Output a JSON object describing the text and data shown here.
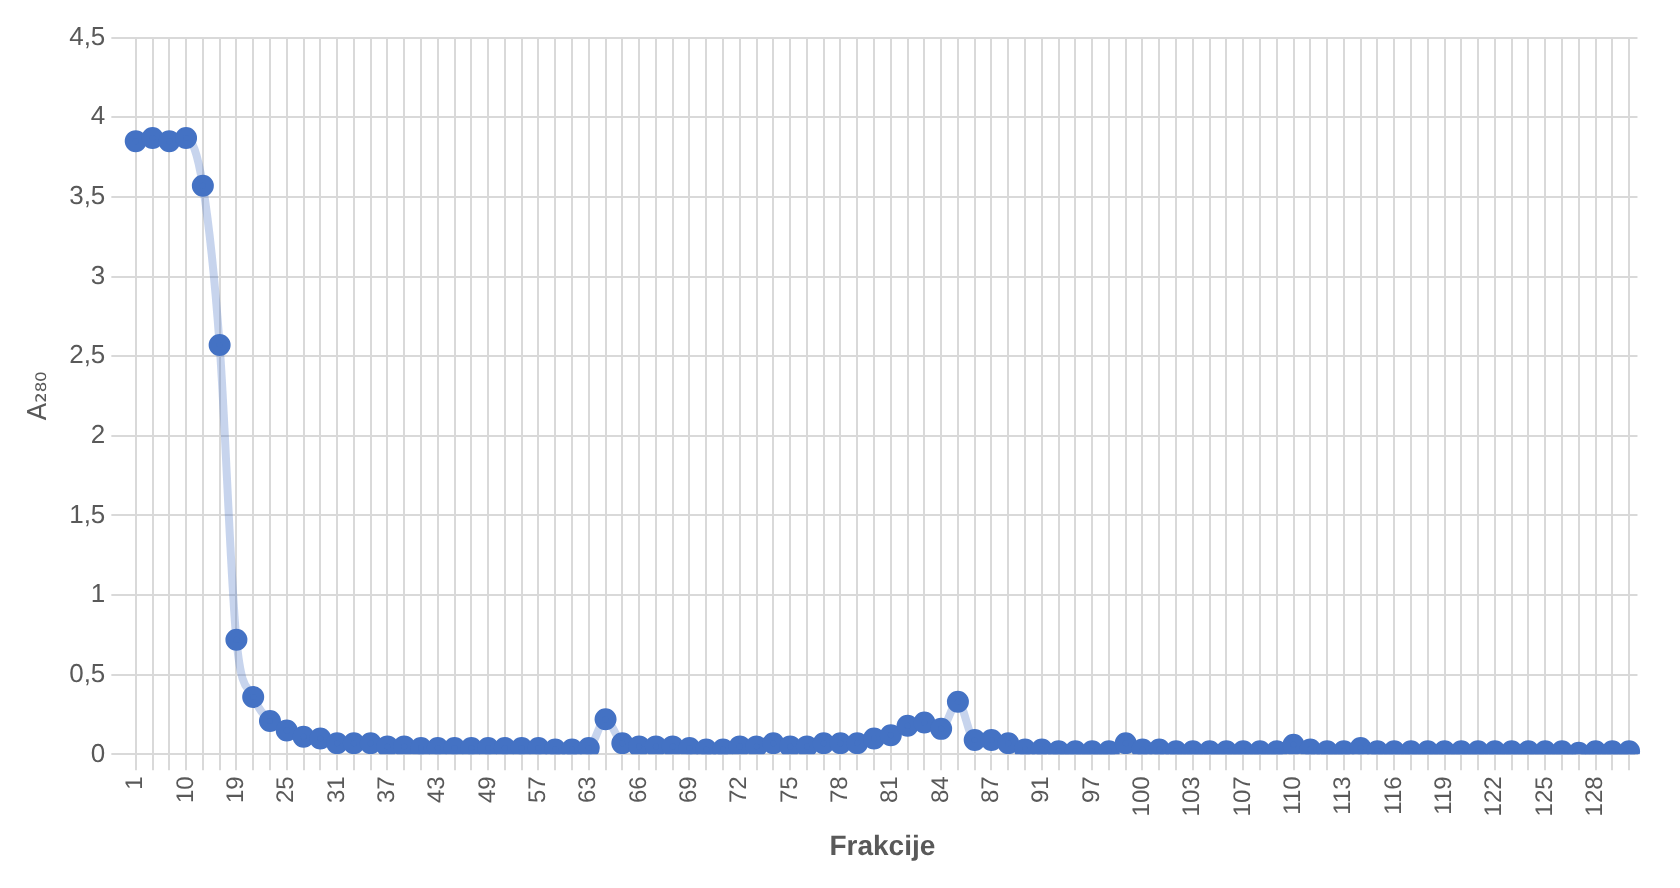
{
  "chart_data": {
    "type": "line",
    "xlabel": "Frakcije",
    "ylabel": "A₂₈₀",
    "categories": [
      "1",
      null,
      null,
      "10",
      null,
      null,
      "19",
      null,
      null,
      "25",
      null,
      null,
      "31",
      null,
      null,
      "37",
      null,
      null,
      "43",
      null,
      null,
      "49",
      null,
      null,
      "57",
      null,
      null,
      "63",
      null,
      null,
      "66",
      null,
      null,
      "69",
      null,
      null,
      "72",
      null,
      null,
      "75",
      null,
      null,
      "78",
      null,
      null,
      "81",
      null,
      null,
      "84",
      null,
      null,
      "87",
      null,
      null,
      "91",
      null,
      null,
      "97",
      null,
      null,
      "100",
      null,
      null,
      "103",
      null,
      null,
      "107",
      null,
      null,
      "110",
      null,
      null,
      "113",
      null,
      null,
      "116",
      null,
      null,
      "119",
      null,
      null,
      "122",
      null,
      null,
      "125",
      null,
      null,
      "128",
      null,
      null
    ],
    "series": [
      {
        "color": "#4472c4",
        "values": [
          3.85,
          3.87,
          3.85,
          3.87,
          3.57,
          2.57,
          0.72,
          0.36,
          0.21,
          0.15,
          0.11,
          0.1,
          0.07,
          0.07,
          0.07,
          0.05,
          0.05,
          0.04,
          0.04,
          0.04,
          0.04,
          0.04,
          0.04,
          0.04,
          0.04,
          0.03,
          0.03,
          0.04,
          0.22,
          0.07,
          0.05,
          0.05,
          0.05,
          0.04,
          0.03,
          0.03,
          0.05,
          0.05,
          0.07,
          0.05,
          0.05,
          0.07,
          0.07,
          0.07,
          0.1,
          0.12,
          0.18,
          0.2,
          0.16,
          0.33,
          0.09,
          0.09,
          0.07,
          0.03,
          0.03,
          0.02,
          0.02,
          0.02,
          0.02,
          0.07,
          0.03,
          0.03,
          0.02,
          0.02,
          0.02,
          0.02,
          0.02,
          0.02,
          0.02,
          0.06,
          0.03,
          0.02,
          0.02,
          0.04,
          0.02,
          0.02,
          0.02,
          0.02,
          0.02,
          0.02,
          0.02,
          0.02,
          0.02,
          0.02,
          0.02,
          0.02,
          0.01,
          0.02,
          0.02,
          0.02
        ]
      }
    ],
    "ylim": [
      0,
      4.5
    ],
    "yticks": [
      0,
      {
        "value": 0.5,
        "label": "0,5"
      },
      1,
      {
        "value": 1.5,
        "label": "1,5"
      },
      2,
      {
        "value": 2.5,
        "label": "2,5"
      },
      3,
      {
        "value": 3.5,
        "label": "3,5"
      },
      4,
      {
        "value": 4.5,
        "label": "4,5"
      }
    ],
    "grid": true,
    "marker": "circle",
    "line_style": "solid",
    "legend": false
  }
}
